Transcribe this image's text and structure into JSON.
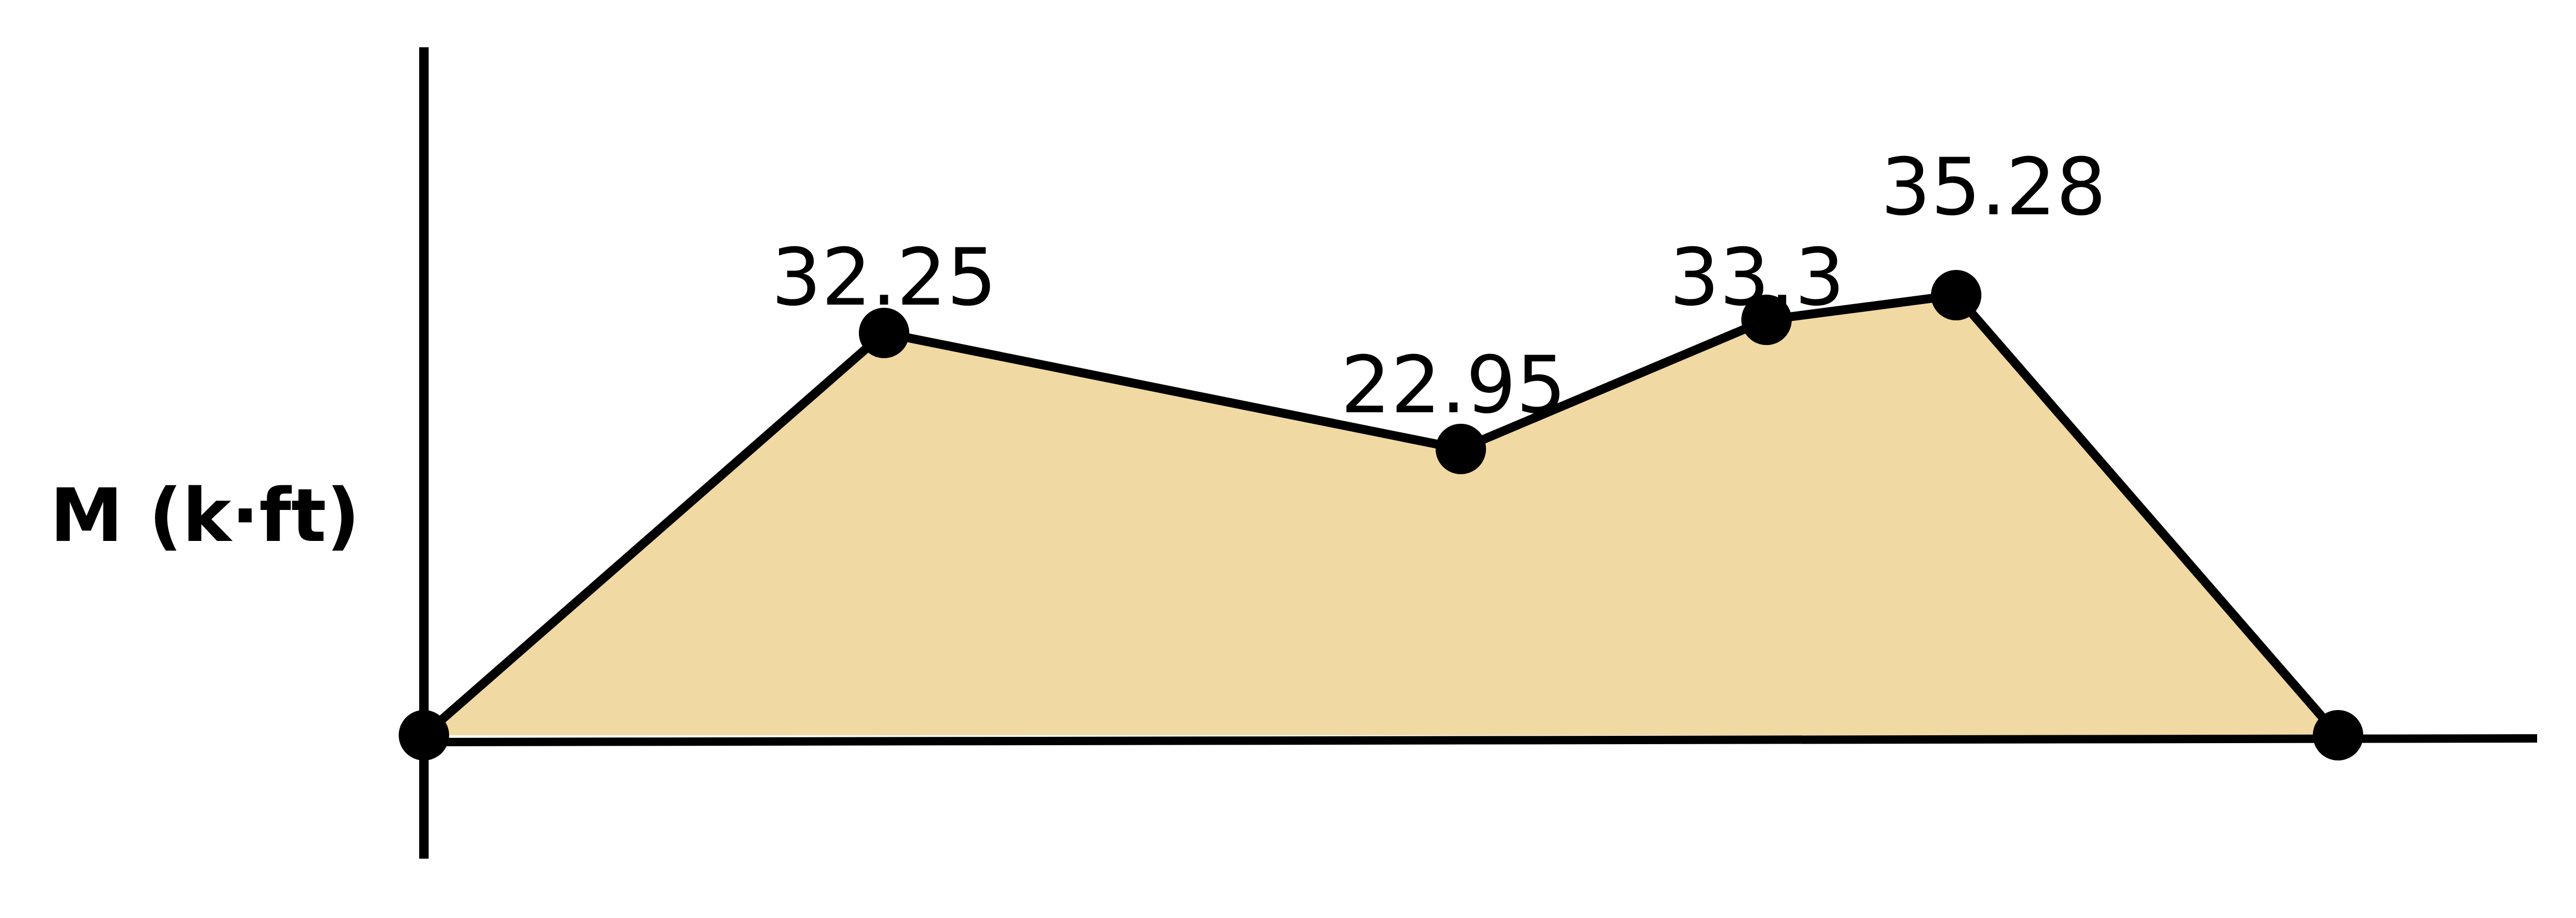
{
  "diagram": {
    "ylabel": "M (k·ft)",
    "fill_color": "#F0D9A2",
    "line_color": "#000000",
    "points": [
      {
        "value": 0,
        "label": ""
      },
      {
        "value": 32.25,
        "label": "32.25"
      },
      {
        "value": 22.95,
        "label": "22.95"
      },
      {
        "value": 33.3,
        "label": "33.3"
      },
      {
        "value": 35.28,
        "label": "35.28"
      },
      {
        "value": 0,
        "label": ""
      }
    ]
  }
}
